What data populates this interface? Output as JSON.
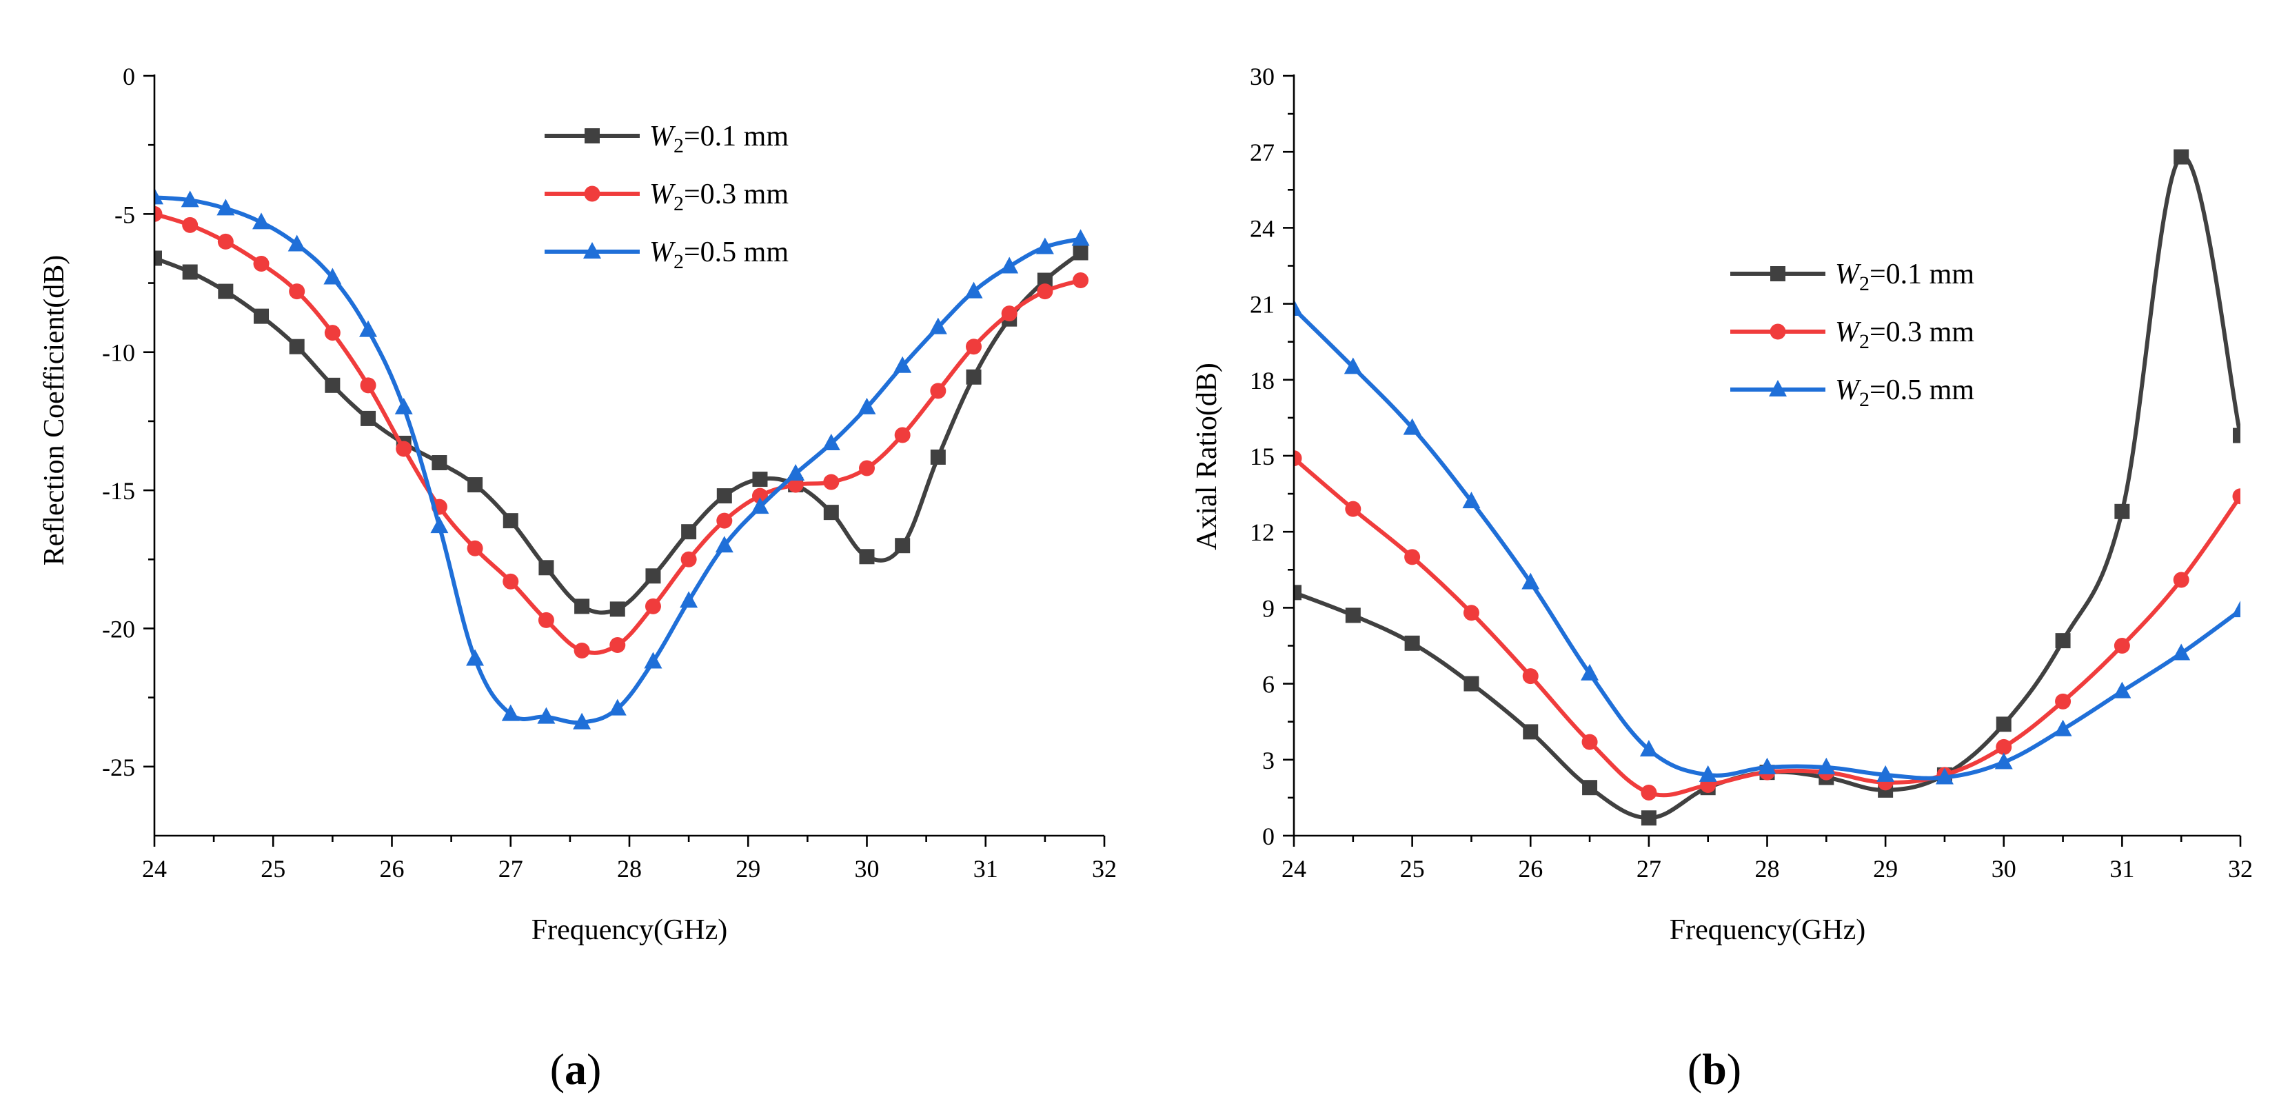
{
  "figure": {
    "panel_a_label": "a",
    "panel_b_label": "b"
  },
  "legend": {
    "var_symbol": "W",
    "var_sub": "2"
  },
  "chart_data": [
    {
      "type": "line",
      "panel": "a",
      "title": "",
      "xlabel": "Frequency(GHz)",
      "ylabel": "Reflection Coefficient(dB)",
      "xlim": [
        24,
        32
      ],
      "ylim": [
        -27.5,
        0
      ],
      "xticks": [
        24,
        25,
        26,
        27,
        28,
        29,
        30,
        31,
        32
      ],
      "yticks": [
        0,
        -5,
        -10,
        -15,
        -20,
        -25
      ],
      "legend_position": "top-center",
      "series": [
        {
          "name": "W2=0.1 mm",
          "legend_value": "=0.1 mm",
          "color": "#404040",
          "marker": "square",
          "x": [
            24,
            24.3,
            24.6,
            24.9,
            25.2,
            25.5,
            25.8,
            26.1,
            26.4,
            26.7,
            27.0,
            27.3,
            27.6,
            27.9,
            28.2,
            28.5,
            28.8,
            29.1,
            29.4,
            29.7,
            30.0,
            30.3,
            30.6,
            30.9,
            31.2,
            31.5,
            31.8
          ],
          "y": [
            -6.6,
            -7.1,
            -7.8,
            -8.7,
            -9.8,
            -11.2,
            -12.4,
            -13.3,
            -14.0,
            -14.8,
            -16.1,
            -17.8,
            -19.2,
            -19.3,
            -18.1,
            -16.5,
            -15.2,
            -14.6,
            -14.8,
            -15.8,
            -17.4,
            -17.0,
            -13.8,
            -10.9,
            -8.8,
            -7.4,
            -6.4
          ]
        },
        {
          "name": "W2=0.3 mm",
          "legend_value": "=0.3 mm",
          "color": "#f03c3c",
          "marker": "circle",
          "x": [
            24,
            24.3,
            24.6,
            24.9,
            25.2,
            25.5,
            25.8,
            26.1,
            26.4,
            26.7,
            27.0,
            27.3,
            27.6,
            27.9,
            28.2,
            28.5,
            28.8,
            29.1,
            29.4,
            29.7,
            30.0,
            30.3,
            30.6,
            30.9,
            31.2,
            31.5,
            31.8
          ],
          "y": [
            -5.0,
            -5.4,
            -6.0,
            -6.8,
            -7.8,
            -9.3,
            -11.2,
            -13.5,
            -15.6,
            -17.1,
            -18.3,
            -19.7,
            -20.8,
            -20.6,
            -19.2,
            -17.5,
            -16.1,
            -15.2,
            -14.8,
            -14.7,
            -14.2,
            -13.0,
            -11.4,
            -9.8,
            -8.6,
            -7.8,
            -7.4
          ]
        },
        {
          "name": "W2=0.5 mm",
          "legend_value": "=0.5 mm",
          "color": "#1f6fd8",
          "marker": "triangle",
          "x": [
            24,
            24.3,
            24.6,
            24.9,
            25.2,
            25.5,
            25.8,
            26.1,
            26.4,
            26.7,
            27.0,
            27.3,
            27.6,
            27.9,
            28.2,
            28.5,
            28.8,
            29.1,
            29.4,
            29.7,
            30.0,
            30.3,
            30.6,
            30.9,
            31.2,
            31.5,
            31.8
          ],
          "y": [
            -4.4,
            -4.5,
            -4.8,
            -5.3,
            -6.1,
            -7.3,
            -9.2,
            -12.0,
            -16.3,
            -21.1,
            -23.1,
            -23.2,
            -23.4,
            -22.9,
            -21.2,
            -19.0,
            -17.0,
            -15.6,
            -14.4,
            -13.3,
            -12.0,
            -10.5,
            -9.1,
            -7.8,
            -6.9,
            -6.2,
            -5.9
          ]
        }
      ]
    },
    {
      "type": "line",
      "panel": "b",
      "title": "",
      "xlabel": "Frequency(GHz)",
      "ylabel": "Axial Ratio(dB)",
      "xlim": [
        24,
        32
      ],
      "ylim": [
        0,
        30
      ],
      "xticks": [
        24,
        25,
        26,
        27,
        28,
        29,
        30,
        31,
        32
      ],
      "yticks": [
        0,
        3,
        6,
        9,
        12,
        15,
        18,
        21,
        24,
        27,
        30
      ],
      "legend_position": "top-right",
      "series": [
        {
          "name": "W2=0.1 mm",
          "legend_value": "=0.1 mm",
          "color": "#404040",
          "marker": "square",
          "x": [
            24,
            24.5,
            25,
            25.5,
            26,
            26.5,
            27,
            27.5,
            28,
            28.5,
            29,
            29.5,
            30,
            30.5,
            31,
            31.5,
            32
          ],
          "y": [
            9.6,
            8.7,
            7.6,
            6.0,
            4.1,
            1.9,
            0.7,
            1.9,
            2.5,
            2.3,
            1.8,
            2.4,
            4.4,
            7.7,
            12.8,
            26.8,
            15.8
          ]
        },
        {
          "name": "W2=0.3 mm",
          "legend_value": "=0.3 mm",
          "color": "#f03c3c",
          "marker": "circle",
          "x": [
            24,
            24.5,
            25,
            25.5,
            26,
            26.5,
            27,
            27.5,
            28,
            28.5,
            29,
            29.5,
            30,
            30.5,
            31,
            31.5,
            32
          ],
          "y": [
            14.9,
            12.9,
            11.0,
            8.8,
            6.3,
            3.7,
            1.7,
            2.0,
            2.5,
            2.5,
            2.1,
            2.4,
            3.5,
            5.3,
            7.5,
            10.1,
            13.4
          ]
        },
        {
          "name": "W2=0.5 mm",
          "legend_value": "=0.5 mm",
          "color": "#1f6fd8",
          "marker": "triangle",
          "x": [
            24,
            24.5,
            25,
            25.5,
            26,
            26.5,
            27,
            27.5,
            28,
            28.5,
            29,
            29.5,
            30,
            30.5,
            31,
            31.5,
            32
          ],
          "y": [
            20.8,
            18.5,
            16.1,
            13.2,
            10.0,
            6.4,
            3.4,
            2.4,
            2.7,
            2.7,
            2.4,
            2.3,
            2.9,
            4.2,
            5.7,
            7.2,
            8.9
          ]
        }
      ]
    }
  ]
}
